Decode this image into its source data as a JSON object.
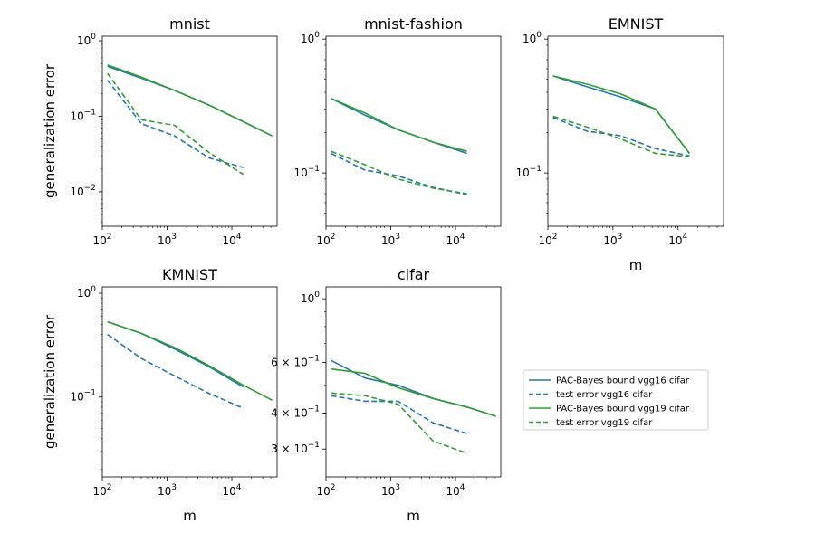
{
  "figure": {
    "colors": {
      "vgg16": "#1f77b4",
      "vgg19": "#2ca02c"
    }
  },
  "legend": {
    "placement": "right, beside the bottom row",
    "entries": [
      {
        "label": "PAC-Bayes bound vgg16 cifar",
        "color": "#1f77b4",
        "style": "solid"
      },
      {
        "label": "test error vgg16 cifar",
        "color": "#1f77b4",
        "style": "dashed"
      },
      {
        "label": "PAC-Bayes bound vgg19 cifar",
        "color": "#2ca02c",
        "style": "solid"
      },
      {
        "label": "test error vgg19 cifar",
        "color": "#2ca02c",
        "style": "dashed"
      }
    ]
  },
  "chart_data": [
    {
      "type": "line",
      "title": "mnist",
      "xlabel": "",
      "ylabel": "generalization error",
      "xscale": "log",
      "yscale": "log",
      "xlim": [
        100,
        50000
      ],
      "ylim": [
        0.0035,
        1.15
      ],
      "xticks": [
        {
          "value": 100,
          "label": "10^2"
        },
        {
          "value": 1000,
          "label": "10^3"
        },
        {
          "value": 10000,
          "label": "10^4"
        }
      ],
      "yticks": [
        {
          "value": 1,
          "label": "10^0"
        },
        {
          "value": 0.1,
          "label": "10^-1"
        },
        {
          "value": 0.01,
          "label": "10^-2"
        }
      ],
      "series": [
        {
          "color": "#1f77b4",
          "style": "solid",
          "x": [
            120,
            400,
            1300,
            4500,
            15000,
            42000
          ],
          "y": [
            0.46,
            0.32,
            0.22,
            0.14,
            0.085,
            0.055
          ]
        },
        {
          "color": "#1f77b4",
          "style": "dashed",
          "x": [
            120,
            400,
            1300,
            4500,
            15000
          ],
          "y": [
            0.3,
            0.08,
            0.055,
            0.028,
            0.021
          ]
        },
        {
          "color": "#2ca02c",
          "style": "solid",
          "x": [
            120,
            400,
            1300,
            4500,
            15000,
            42000
          ],
          "y": [
            0.48,
            0.33,
            0.22,
            0.14,
            0.085,
            0.055
          ]
        },
        {
          "color": "#2ca02c",
          "style": "dashed",
          "x": [
            120,
            400,
            1300,
            4500,
            15000
          ],
          "y": [
            0.37,
            0.09,
            0.076,
            0.033,
            0.017
          ]
        }
      ]
    },
    {
      "type": "line",
      "title": "mnist-fashion",
      "xlabel": "",
      "ylabel": "",
      "xscale": "log",
      "yscale": "log",
      "xlim": [
        100,
        50000
      ],
      "ylim": [
        0.04,
        1.05
      ],
      "xticks": [
        {
          "value": 100,
          "label": "10^2"
        },
        {
          "value": 1000,
          "label": "10^3"
        },
        {
          "value": 10000,
          "label": "10^4"
        }
      ],
      "yticks": [
        {
          "value": 1,
          "label": "10^0"
        },
        {
          "value": 0.1,
          "label": "10^-1"
        }
      ],
      "series": [
        {
          "color": "#1f77b4",
          "style": "solid",
          "x": [
            120,
            400,
            1300,
            4500,
            15000
          ],
          "y": [
            0.36,
            0.27,
            0.21,
            0.17,
            0.14
          ]
        },
        {
          "color": "#1f77b4",
          "style": "dashed",
          "x": [
            120,
            400,
            1300,
            4500,
            15000
          ],
          "y": [
            0.14,
            0.105,
            0.095,
            0.078,
            0.069
          ]
        },
        {
          "color": "#2ca02c",
          "style": "solid",
          "x": [
            120,
            400,
            1300,
            4500,
            15000
          ],
          "y": [
            0.36,
            0.28,
            0.21,
            0.17,
            0.145
          ]
        },
        {
          "color": "#2ca02c",
          "style": "dashed",
          "x": [
            120,
            400,
            1300,
            4500,
            15000
          ],
          "y": [
            0.145,
            0.115,
            0.09,
            0.077,
            0.07
          ]
        }
      ]
    },
    {
      "type": "line",
      "title": "EMNIST",
      "xlabel": "m",
      "ylabel": "",
      "xscale": "log",
      "yscale": "log",
      "xlim": [
        100,
        50000
      ],
      "ylim": [
        0.04,
        1.05
      ],
      "xticks": [
        {
          "value": 100,
          "label": "10^2"
        },
        {
          "value": 1000,
          "label": "10^3"
        },
        {
          "value": 10000,
          "label": "10^4"
        }
      ],
      "yticks": [
        {
          "value": 1,
          "label": "10^0"
        },
        {
          "value": 0.1,
          "label": "10^-1"
        }
      ],
      "series": [
        {
          "color": "#1f77b4",
          "style": "solid",
          "x": [
            120,
            400,
            1300,
            4500,
            15000
          ],
          "y": [
            0.53,
            0.44,
            0.37,
            0.3,
            0.14
          ]
        },
        {
          "color": "#1f77b4",
          "style": "dashed",
          "x": [
            120,
            400,
            1300,
            4500,
            15000
          ],
          "y": [
            0.26,
            0.205,
            0.19,
            0.152,
            0.134
          ]
        },
        {
          "color": "#2ca02c",
          "style": "solid",
          "x": [
            120,
            400,
            1300,
            4500,
            15000
          ],
          "y": [
            0.53,
            0.46,
            0.39,
            0.3,
            0.14
          ]
        },
        {
          "color": "#2ca02c",
          "style": "dashed",
          "x": [
            120,
            400,
            1300,
            4500,
            15000
          ],
          "y": [
            0.265,
            0.22,
            0.18,
            0.14,
            0.132
          ]
        }
      ]
    },
    {
      "type": "line",
      "title": "KMNIST",
      "xlabel": "m",
      "ylabel": "generalization error",
      "xscale": "log",
      "yscale": "log",
      "xlim": [
        100,
        50000
      ],
      "ylim": [
        0.017,
        1.15
      ],
      "xticks": [
        {
          "value": 100,
          "label": "10^2"
        },
        {
          "value": 1000,
          "label": "10^3"
        },
        {
          "value": 10000,
          "label": "10^4"
        }
      ],
      "yticks": [
        {
          "value": 1,
          "label": "10^0"
        },
        {
          "value": 0.1,
          "label": "10^-1"
        }
      ],
      "series": [
        {
          "color": "#1f77b4",
          "style": "solid",
          "x": [
            120,
            400,
            1300,
            4500,
            15000
          ],
          "y": [
            0.53,
            0.41,
            0.29,
            0.195,
            0.125
          ]
        },
        {
          "color": "#1f77b4",
          "style": "dashed",
          "x": [
            120,
            400,
            1300,
            4500,
            15000
          ],
          "y": [
            0.4,
            0.235,
            0.16,
            0.108,
            0.078
          ]
        },
        {
          "color": "#2ca02c",
          "style": "solid",
          "x": [
            120,
            400,
            1300,
            4500,
            15000,
            42000
          ],
          "y": [
            0.53,
            0.41,
            0.3,
            0.2,
            0.13,
            0.093
          ]
        }
      ]
    },
    {
      "type": "line",
      "title": "cifar",
      "xlabel": "m",
      "ylabel": "",
      "xscale": "log",
      "yscale": "log",
      "xlim": [
        100,
        50000
      ],
      "ylim": [
        0.24,
        1.1
      ],
      "xticks": [
        {
          "value": 100,
          "label": "10^2"
        },
        {
          "value": 1000,
          "label": "10^3"
        },
        {
          "value": 10000,
          "label": "10^4"
        }
      ],
      "yticks": [
        {
          "value": 1,
          "label": "10^0"
        },
        {
          "value": 0.6,
          "label": "6 × 10^-1"
        },
        {
          "value": 0.4,
          "label": "4 × 10^-1"
        },
        {
          "value": 0.3,
          "label": "3 × 10^-1"
        }
      ],
      "series": [
        {
          "color": "#1f77b4",
          "style": "solid",
          "x": [
            120,
            400,
            1300,
            4500,
            15000,
            42000
          ],
          "y": [
            0.61,
            0.53,
            0.5,
            0.45,
            0.42,
            0.39
          ]
        },
        {
          "color": "#1f77b4",
          "style": "dashed",
          "x": [
            120,
            400,
            1300,
            4500,
            15000
          ],
          "y": [
            0.46,
            0.44,
            0.44,
            0.37,
            0.34
          ]
        },
        {
          "color": "#2ca02c",
          "style": "solid",
          "x": [
            120,
            400,
            1300,
            4500,
            15000,
            42000
          ],
          "y": [
            0.57,
            0.55,
            0.49,
            0.45,
            0.42,
            0.39
          ]
        },
        {
          "color": "#2ca02c",
          "style": "dashed",
          "x": [
            120,
            400,
            1300,
            4500,
            15000
          ],
          "y": [
            0.47,
            0.46,
            0.43,
            0.32,
            0.29
          ]
        }
      ]
    }
  ]
}
